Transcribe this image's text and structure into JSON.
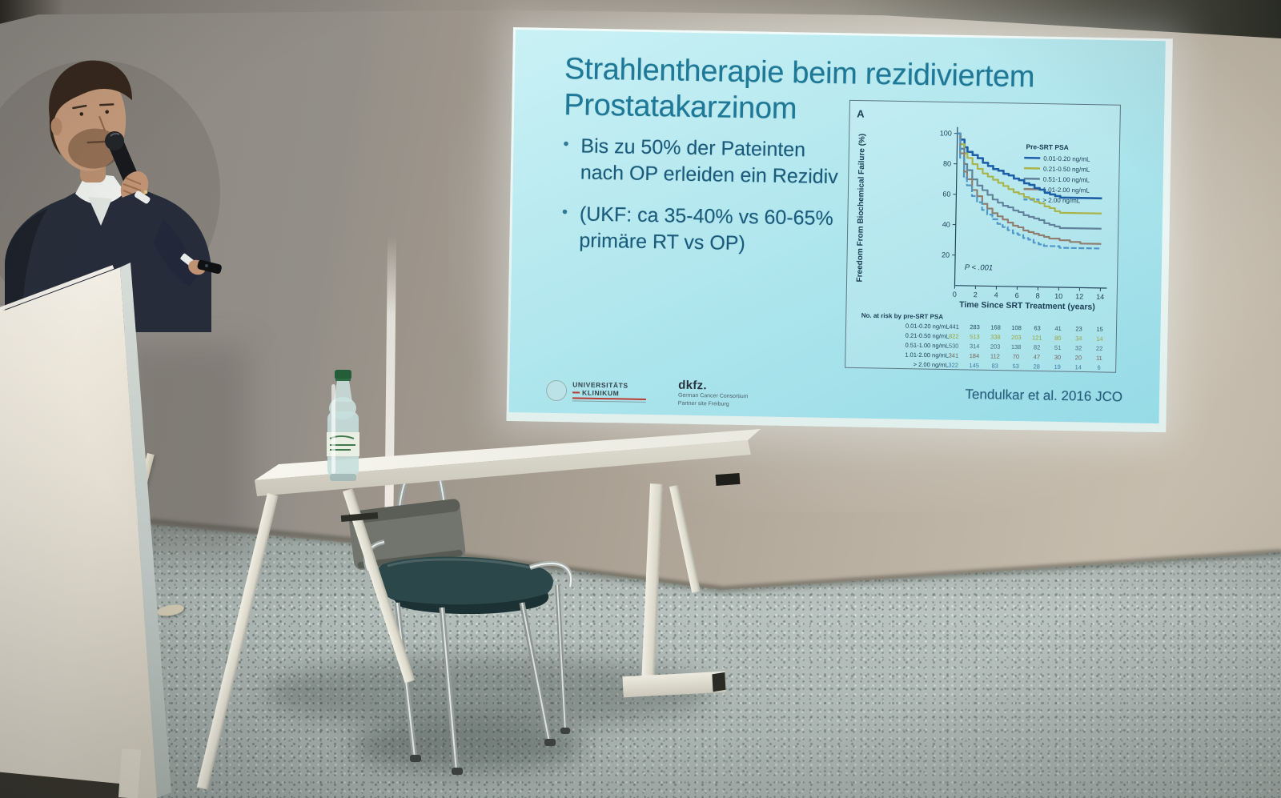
{
  "slide": {
    "title": [
      "Strahlentherapie beim rezidiviertem",
      "Prostatakarzinom"
    ],
    "bullets": [
      "Bis zu 50% der Pateinten nach OP erleiden ein Rezidiv",
      "(UKF: ca 35-40% vs 60-65% primäre RT vs OP)"
    ],
    "citation": "Tendulkar et al. 2016 JCO",
    "logos": {
      "uniklinik_line1": "UNIVERSITÄTS",
      "uniklinik_line2": "KLINIKUM",
      "dkfz": "dkfz.",
      "dkfz_sub1": "German Cancer Consortium",
      "dkfz_sub2": "Partner site Freiburg"
    },
    "colors": {
      "background": "#aee6ec",
      "title": "#1e7897",
      "body_text": "#1a5a7b"
    }
  },
  "chart_data": {
    "type": "line",
    "panel_label": "A",
    "title": "",
    "xlabel": "Time Since SRT Treatment (years)",
    "ylabel": "Freedom From Biochemical Failure (%)",
    "xlim": [
      0,
      14
    ],
    "ylim": [
      0,
      100
    ],
    "xticks": [
      0,
      2,
      4,
      6,
      8,
      10,
      12,
      14
    ],
    "yticks": [
      20,
      40,
      60,
      80,
      100
    ],
    "grid": false,
    "legend_position": "top-right",
    "legend_title": "Pre-SRT PSA",
    "pvalue": "P < .001",
    "series": [
      {
        "name": "0.01-0.20 ng/mL",
        "color": "#1d5fa6",
        "dash": false,
        "points": [
          [
            0,
            100
          ],
          [
            0.3,
            96
          ],
          [
            0.7,
            91
          ],
          [
            1,
            88
          ],
          [
            1.5,
            86
          ],
          [
            2,
            84
          ],
          [
            2.5,
            81
          ],
          [
            3,
            79
          ],
          [
            3.5,
            77
          ],
          [
            4,
            76
          ],
          [
            4.5,
            74
          ],
          [
            5,
            73
          ],
          [
            5.5,
            71
          ],
          [
            6,
            70
          ],
          [
            6.5,
            68
          ],
          [
            7,
            67
          ],
          [
            7.5,
            65
          ],
          [
            8,
            64
          ],
          [
            8.5,
            62
          ],
          [
            9,
            61
          ],
          [
            9.5,
            60
          ],
          [
            10,
            59
          ],
          [
            14,
            59
          ]
        ]
      },
      {
        "name": "0.21-0.50 ng/mL",
        "color": "#a9b44c",
        "dash": false,
        "points": [
          [
            0,
            100
          ],
          [
            0.3,
            93
          ],
          [
            0.7,
            87
          ],
          [
            1,
            84
          ],
          [
            1.5,
            80
          ],
          [
            2,
            77
          ],
          [
            2.5,
            74
          ],
          [
            3,
            72
          ],
          [
            3.5,
            70
          ],
          [
            4,
            68
          ],
          [
            4.5,
            66
          ],
          [
            5,
            64
          ],
          [
            5.5,
            62
          ],
          [
            6,
            61
          ],
          [
            6.5,
            59
          ],
          [
            7,
            58
          ],
          [
            7.5,
            56
          ],
          [
            8,
            55
          ],
          [
            8.5,
            53
          ],
          [
            9,
            52
          ],
          [
            9.5,
            50
          ],
          [
            10,
            49
          ],
          [
            14,
            49
          ]
        ]
      },
      {
        "name": "0.51-1.00 ng/mL",
        "color": "#60829a",
        "dash": false,
        "points": [
          [
            0,
            100
          ],
          [
            0.3,
            90
          ],
          [
            0.7,
            80
          ],
          [
            1,
            76
          ],
          [
            1.5,
            70
          ],
          [
            2,
            66
          ],
          [
            2.5,
            63
          ],
          [
            3,
            60
          ],
          [
            3.5,
            57
          ],
          [
            4,
            55
          ],
          [
            4.5,
            53
          ],
          [
            5,
            52
          ],
          [
            5.5,
            50
          ],
          [
            6,
            49
          ],
          [
            6.5,
            47
          ],
          [
            7,
            46
          ],
          [
            7.5,
            45
          ],
          [
            8,
            44
          ],
          [
            8.5,
            42
          ],
          [
            9,
            41
          ],
          [
            9.5,
            40
          ],
          [
            10,
            39
          ],
          [
            14,
            39
          ]
        ]
      },
      {
        "name": "1.01-2.00 ng/mL",
        "color": "#8f7e70",
        "dash": false,
        "points": [
          [
            0,
            100
          ],
          [
            0.3,
            87
          ],
          [
            0.7,
            75
          ],
          [
            1,
            70
          ],
          [
            1.5,
            63
          ],
          [
            2,
            59
          ],
          [
            2.5,
            54
          ],
          [
            3,
            51
          ],
          [
            3.5,
            48
          ],
          [
            4,
            46
          ],
          [
            4.5,
            44
          ],
          [
            5,
            42
          ],
          [
            5.5,
            40
          ],
          [
            6,
            39
          ],
          [
            6.5,
            37
          ],
          [
            7,
            36
          ],
          [
            7.5,
            35
          ],
          [
            8,
            34
          ],
          [
            8.5,
            33
          ],
          [
            9,
            32
          ],
          [
            10,
            31
          ],
          [
            11,
            30
          ],
          [
            12,
            29
          ],
          [
            14,
            29
          ]
        ]
      },
      {
        "name": "> 2.00 ng/mL",
        "color": "#4e97c8",
        "dash": true,
        "points": [
          [
            0,
            100
          ],
          [
            0.3,
            84
          ],
          [
            0.7,
            71
          ],
          [
            1,
            66
          ],
          [
            1.5,
            59
          ],
          [
            2,
            55
          ],
          [
            2.5,
            50
          ],
          [
            3,
            47
          ],
          [
            3.5,
            44
          ],
          [
            4,
            41
          ],
          [
            4.5,
            39
          ],
          [
            5,
            37
          ],
          [
            5.5,
            35
          ],
          [
            6,
            34
          ],
          [
            6.5,
            32
          ],
          [
            7,
            31
          ],
          [
            7.5,
            29
          ],
          [
            8,
            28
          ],
          [
            8.5,
            27
          ],
          [
            9,
            27
          ],
          [
            10,
            26
          ],
          [
            14,
            26
          ]
        ]
      }
    ],
    "risk_table": {
      "header": "No. at risk by pre-SRT PSA",
      "rows": [
        {
          "label": "0.01-0.20 ng/mL",
          "color": "#2a4d66",
          "values": [
            "441",
            "283",
            "168",
            "108",
            "63",
            "41",
            "23",
            "15"
          ]
        },
        {
          "label": "0.21-0.50 ng/mL",
          "color": "#99a63e",
          "values": [
            "822",
            "513",
            "338",
            "203",
            "121",
            "80",
            "34",
            "14"
          ]
        },
        {
          "label": "0.51-1.00 ng/mL",
          "color": "#4b6b80",
          "values": [
            "530",
            "314",
            "203",
            "138",
            "82",
            "51",
            "32",
            "22"
          ]
        },
        {
          "label": "1.01-2.00 ng/mL",
          "color": "#75655a",
          "values": [
            "341",
            "184",
            "112",
            "70",
            "47",
            "30",
            "20",
            "11"
          ]
        },
        {
          "label": "> 2.00 ng/mL",
          "color": "#3f7ba3",
          "values": [
            "322",
            "145",
            "83",
            "53",
            "28",
            "19",
            "14",
            "6"
          ]
        }
      ]
    }
  }
}
